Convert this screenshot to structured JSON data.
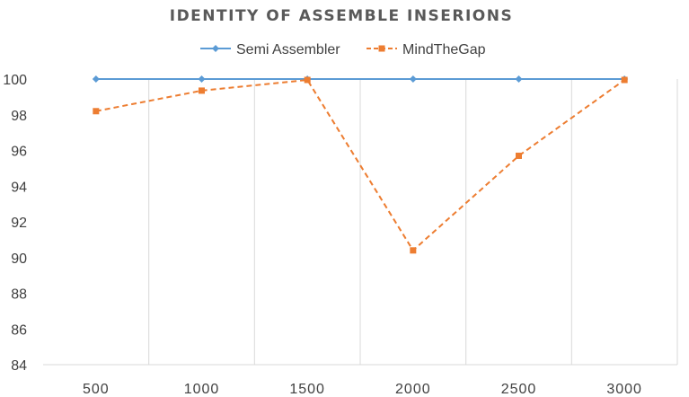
{
  "chart_data": {
    "type": "line",
    "title": "IDENTITY OF ASSEMBLE INSERIONS",
    "xlabel": "",
    "ylabel": "",
    "categories": [
      "500",
      "1000",
      "1500",
      "2000",
      "2500",
      "3000"
    ],
    "ylim": [
      84,
      100
    ],
    "yticks": [
      "84",
      "86",
      "88",
      "90",
      "92",
      "94",
      "96",
      "98",
      "100"
    ],
    "grid": "vertical",
    "legend_position": "top",
    "series": [
      {
        "name": "Semi Assembler",
        "values": [
          100,
          100,
          100,
          100,
          100,
          100
        ],
        "color": "#5B9BD5",
        "marker": "diamond",
        "line_style": "solid"
      },
      {
        "name": "MindTheGap",
        "values": [
          98.2,
          99.35,
          99.95,
          90.4,
          95.7,
          99.95
        ],
        "color": "#ED7D31",
        "marker": "square",
        "line_style": "dashed"
      }
    ]
  }
}
